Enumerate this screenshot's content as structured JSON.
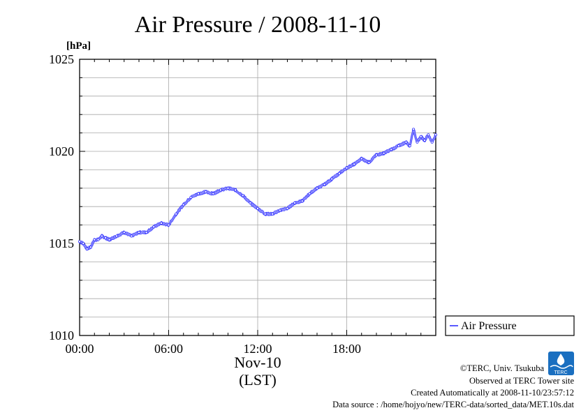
{
  "chart_data": {
    "type": "line",
    "title": "Air Pressure / 2008-11-10",
    "ylabel": "[hPa]",
    "xlabel_lines": [
      "Nov-10",
      "(LST)"
    ],
    "ylim": [
      1010,
      1025
    ],
    "xlim_hours": [
      0,
      24
    ],
    "y_ticks": [
      "1010",
      "1015",
      "1020",
      "1025"
    ],
    "x_ticks": [
      {
        "hour": 0,
        "label": "00:00"
      },
      {
        "hour": 6,
        "label": "06:00"
      },
      {
        "hour": 12,
        "label": "12:00"
      },
      {
        "hour": 18,
        "label": "18:00"
      }
    ],
    "grid": true,
    "legend_position": "right-bottom",
    "series": [
      {
        "name": "Air Pressure",
        "color": "#3030ff",
        "x_hours": [
          0,
          0.25,
          0.5,
          0.75,
          1,
          1.25,
          1.5,
          1.75,
          2,
          2.5,
          3,
          3.5,
          4,
          4.5,
          5,
          5.5,
          6,
          6.5,
          7,
          7.5,
          8,
          8.5,
          9,
          9.5,
          10,
          10.5,
          11,
          11.5,
          12,
          12.5,
          13,
          13.5,
          14,
          14.5,
          15,
          15.5,
          16,
          16.5,
          17,
          17.5,
          18,
          18.5,
          19,
          19.5,
          20,
          20.5,
          21,
          21.5,
          22,
          22.25,
          22.5,
          22.75,
          23,
          23.25,
          23.5,
          23.75,
          24
        ],
        "values": [
          1015.1,
          1015.0,
          1014.7,
          1014.8,
          1015.2,
          1015.2,
          1015.4,
          1015.3,
          1015.2,
          1015.4,
          1015.6,
          1015.4,
          1015.6,
          1015.6,
          1015.9,
          1016.1,
          1016.0,
          1016.6,
          1017.1,
          1017.5,
          1017.7,
          1017.8,
          1017.7,
          1017.9,
          1018.0,
          1017.9,
          1017.6,
          1017.2,
          1016.9,
          1016.6,
          1016.6,
          1016.8,
          1016.9,
          1017.2,
          1017.3,
          1017.7,
          1018.0,
          1018.2,
          1018.5,
          1018.8,
          1019.1,
          1019.3,
          1019.6,
          1019.4,
          1019.8,
          1019.9,
          1020.1,
          1020.3,
          1020.5,
          1020.3,
          1021.2,
          1020.5,
          1020.8,
          1020.6,
          1020.9,
          1020.5,
          1020.9
        ]
      }
    ]
  },
  "footer": {
    "copyright": "©TERC, Univ. Tsukuba",
    "observed": "Observed at TERC Tower site",
    "created": "Created Automatically at 2008-11-10/23:57:12",
    "source": "Data source : /home/hojyo/new/TERC-data/sorted_data/MET.10s.dat"
  },
  "logo": {
    "label": "TERC",
    "color": "#1a6fc0"
  }
}
